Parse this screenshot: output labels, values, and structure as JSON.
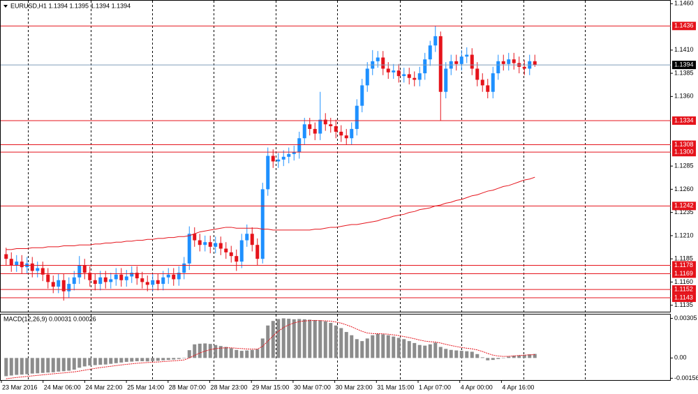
{
  "chart_data": [
    {
      "type": "candlestick",
      "title": "EURUSD,H1  1.1394 1.1395 1.1394 1.1394",
      "up_color": "#1e90ff",
      "down_color": "#e5131b",
      "grid": true,
      "ylim": [
        1.1128,
        1.1464
      ],
      "yticks": [
        {
          "value": 1.146,
          "label": "1.1460"
        },
        {
          "value": 1.141,
          "label": "1.1410"
        },
        {
          "value": 1.1385,
          "label": "1.1385"
        },
        {
          "value": 1.136,
          "label": "1.1360"
        },
        {
          "value": 1.1285,
          "label": "1.1285"
        },
        {
          "value": 1.126,
          "label": "1.1260"
        },
        {
          "value": 1.1235,
          "label": "1.1235"
        },
        {
          "value": 1.121,
          "label": "1.1210"
        },
        {
          "value": 1.1185,
          "label": "1.1185"
        },
        {
          "value": 1.116,
          "label": "1.1160"
        },
        {
          "value": 1.1135,
          "label": "1.1135"
        }
      ],
      "level_color": "#e5131b",
      "levels": [
        {
          "value": 1.1436,
          "label": "1.1436"
        },
        {
          "value": 1.1334,
          "label": "1.1334"
        },
        {
          "value": 1.1308,
          "label": "1.1308"
        },
        {
          "value": 1.13,
          "label": "1.1300"
        },
        {
          "value": 1.1242,
          "label": "1.1242"
        },
        {
          "value": 1.1178,
          "label": "1.1178"
        },
        {
          "value": 1.1169,
          "label": "1.1169"
        },
        {
          "value": 1.1152,
          "label": "1.1152"
        },
        {
          "value": 1.1143,
          "label": "1.1143"
        }
      ],
      "last_color": "#7f9db9",
      "last": {
        "value": 1.1394,
        "label": "1.1394"
      },
      "open": [
        1.119,
        1.1185,
        1.1178,
        1.1182,
        1.1176,
        1.118,
        1.1172,
        1.1175,
        1.1168,
        1.116,
        1.1155,
        1.1162,
        1.115,
        1.1158,
        1.1165,
        1.1178,
        1.117,
        1.1162,
        1.1158,
        1.1165,
        1.116,
        1.1163,
        1.1168,
        1.1162,
        1.1166,
        1.117,
        1.1164,
        1.116,
        1.1157,
        1.1162,
        1.1158,
        1.1165,
        1.1168,
        1.1163,
        1.117,
        1.118,
        1.1212,
        1.1205,
        1.12,
        1.1203,
        1.1198,
        1.1202,
        1.1196,
        1.1192,
        1.1188,
        1.1182,
        1.1205,
        1.1212,
        1.12,
        1.1185,
        1.126,
        1.1296,
        1.129,
        1.1292,
        1.1295,
        1.1298,
        1.13,
        1.1315,
        1.133,
        1.1325,
        1.132,
        1.1335,
        1.133,
        1.1328,
        1.1322,
        1.1318,
        1.1315,
        1.1325,
        1.135,
        1.1372,
        1.139,
        1.1398,
        1.1402,
        1.139,
        1.1386,
        1.1388,
        1.1382,
        1.1384,
        1.138,
        1.1378,
        1.1385,
        1.14,
        1.1415,
        1.1425,
        1.1365,
        1.139,
        1.1398,
        1.1395,
        1.1403,
        1.1405,
        1.139,
        1.1378,
        1.1372,
        1.1365,
        1.1385,
        1.1398,
        1.1395,
        1.14,
        1.1396,
        1.1392,
        1.139,
        1.1398
      ],
      "high": [
        1.1197,
        1.1192,
        1.1189,
        1.1189,
        1.1187,
        1.1187,
        1.1182,
        1.1182,
        1.1175,
        1.1167,
        1.1169,
        1.1169,
        1.1165,
        1.1172,
        1.1188,
        1.1185,
        1.1177,
        1.1169,
        1.1172,
        1.1172,
        1.117,
        1.1175,
        1.1175,
        1.1173,
        1.1177,
        1.1177,
        1.1171,
        1.1167,
        1.1169,
        1.1169,
        1.1172,
        1.1175,
        1.1175,
        1.1177,
        1.1187,
        1.122,
        1.1219,
        1.1212,
        1.121,
        1.121,
        1.1209,
        1.1209,
        1.1203,
        1.1199,
        1.1195,
        1.1212,
        1.1222,
        1.1219,
        1.1207,
        1.1267,
        1.1305,
        1.1303,
        1.1299,
        1.1302,
        1.1305,
        1.1307,
        1.1322,
        1.1337,
        1.1337,
        1.1332,
        1.1365,
        1.1342,
        1.1337,
        1.1335,
        1.1329,
        1.1325,
        1.1332,
        1.1357,
        1.1379,
        1.1397,
        1.141,
        1.1409,
        1.1409,
        1.1397,
        1.1395,
        1.1395,
        1.1391,
        1.1391,
        1.1387,
        1.1392,
        1.1407,
        1.142,
        1.1436,
        1.143,
        1.1397,
        1.1405,
        1.1405,
        1.141,
        1.1413,
        1.1412,
        1.1397,
        1.1385,
        1.1379,
        1.1392,
        1.1405,
        1.1405,
        1.1407,
        1.1407,
        1.1403,
        1.1399,
        1.1405,
        1.1405
      ],
      "low": [
        1.1178,
        1.1171,
        1.1171,
        1.1169,
        1.1169,
        1.1165,
        1.1165,
        1.1161,
        1.1153,
        1.1148,
        1.1148,
        1.114,
        1.1143,
        1.1151,
        1.1158,
        1.1163,
        1.1155,
        1.1151,
        1.1151,
        1.1153,
        1.1153,
        1.1156,
        1.1155,
        1.1155,
        1.1159,
        1.1157,
        1.1153,
        1.115,
        1.115,
        1.1151,
        1.1151,
        1.1158,
        1.1156,
        1.1156,
        1.1163,
        1.1173,
        1.1198,
        1.1193,
        1.1193,
        1.1191,
        1.1191,
        1.1189,
        1.1185,
        1.1181,
        1.1172,
        1.1175,
        1.1198,
        1.1193,
        1.1178,
        1.118,
        1.1253,
        1.1283,
        1.1283,
        1.1285,
        1.1288,
        1.1291,
        1.1293,
        1.1308,
        1.1318,
        1.1313,
        1.1313,
        1.1323,
        1.1321,
        1.1315,
        1.1311,
        1.1308,
        1.1308,
        1.1318,
        1.1343,
        1.1365,
        1.1383,
        1.1391,
        1.1383,
        1.1379,
        1.1379,
        1.1375,
        1.1375,
        1.1373,
        1.1371,
        1.1371,
        1.1378,
        1.1393,
        1.1408,
        1.1334,
        1.1358,
        1.1383,
        1.1388,
        1.1388,
        1.1396,
        1.1383,
        1.1371,
        1.1365,
        1.1358,
        1.1358,
        1.1378,
        1.1388,
        1.1388,
        1.1389,
        1.1385,
        1.1383,
        1.1383,
        1.1392
      ],
      "close": [
        1.1185,
        1.1178,
        1.1182,
        1.1176,
        1.118,
        1.1172,
        1.1175,
        1.1168,
        1.116,
        1.1155,
        1.1162,
        1.115,
        1.1158,
        1.1165,
        1.1178,
        1.117,
        1.1162,
        1.1158,
        1.1165,
        1.116,
        1.1163,
        1.1168,
        1.1162,
        1.1166,
        1.117,
        1.1164,
        1.116,
        1.1157,
        1.1162,
        1.1158,
        1.1165,
        1.1168,
        1.1163,
        1.117,
        1.118,
        1.1212,
        1.1205,
        1.12,
        1.1203,
        1.1198,
        1.1202,
        1.1196,
        1.1192,
        1.1188,
        1.1182,
        1.1205,
        1.1212,
        1.12,
        1.1185,
        1.126,
        1.1296,
        1.129,
        1.1292,
        1.1295,
        1.1298,
        1.13,
        1.1315,
        1.133,
        1.1325,
        1.132,
        1.1335,
        1.133,
        1.1328,
        1.1322,
        1.1318,
        1.1315,
        1.1325,
        1.135,
        1.1372,
        1.139,
        1.1398,
        1.1402,
        1.139,
        1.1386,
        1.1388,
        1.1382,
        1.1384,
        1.138,
        1.1378,
        1.1385,
        1.14,
        1.1415,
        1.1425,
        1.1365,
        1.139,
        1.1398,
        1.1395,
        1.1403,
        1.1405,
        1.139,
        1.1378,
        1.1372,
        1.1365,
        1.1385,
        1.1398,
        1.1395,
        1.14,
        1.1396,
        1.1392,
        1.139,
        1.1398,
        1.1394
      ],
      "ma": {
        "color": "#e5131b",
        "values": [
          1.1195,
          1.1195,
          1.1196,
          1.1196,
          1.1196,
          1.1197,
          1.1197,
          1.1197,
          1.1198,
          1.1198,
          1.1198,
          1.1199,
          1.1199,
          1.1199,
          1.12,
          1.12,
          1.12,
          1.1201,
          1.1201,
          1.1202,
          1.1202,
          1.1203,
          1.1203,
          1.1204,
          1.1204,
          1.1205,
          1.1205,
          1.1206,
          1.1206,
          1.1207,
          1.1207,
          1.1208,
          1.1208,
          1.1209,
          1.1209,
          1.121,
          1.1212,
          1.1214,
          1.1215,
          1.1216,
          1.1217,
          1.1218,
          1.1219,
          1.1219,
          1.1218,
          1.1218,
          1.1218,
          1.1218,
          1.1218,
          1.1217,
          1.1217,
          1.1216,
          1.1216,
          1.1216,
          1.1216,
          1.1216,
          1.1216,
          1.1216,
          1.1216,
          1.1217,
          1.1217,
          1.1218,
          1.1219,
          1.1219,
          1.122,
          1.1221,
          1.1222,
          1.1222,
          1.1223,
          1.1224,
          1.1225,
          1.1226,
          1.1228,
          1.1229,
          1.1231,
          1.1232,
          1.1233,
          1.1235,
          1.1236,
          1.1238,
          1.1239,
          1.124,
          1.1242,
          1.1243,
          1.1245,
          1.1246,
          1.1248,
          1.1249,
          1.1251,
          1.1253,
          1.1254,
          1.1256,
          1.1258,
          1.1259,
          1.1261,
          1.1263,
          1.1264,
          1.1266,
          1.1268,
          1.127,
          1.1271,
          1.1273
        ]
      }
    },
    {
      "type": "macd",
      "label": "MACD(12,26,9) 0.00031 0.00026",
      "grid": true,
      "ylim": [
        -0.0017,
        0.0034
      ],
      "yticks": [
        {
          "value": 0.00305,
          "label": "0.00305"
        },
        {
          "value": 0,
          "label": "0.00"
        },
        {
          "value": -0.00156,
          "label": "-0.00156"
        }
      ],
      "x_labels": [
        "23 Mar 2016",
        "24 Mar 06:00",
        "24 Mar 22:00",
        "25 Mar 14:00",
        "28 Mar 07:00",
        "28 Mar 23:00",
        "29 Mar 15:00",
        "30 Mar 07:00",
        "30 Mar 23:00",
        "31 Mar 15:00",
        "1 Apr 07:00",
        "4 Apr 00:00",
        "4 Apr 16:00"
      ],
      "histogram_color": "#8c8c8c",
      "signal_color": "#e5131b",
      "histogram": [
        -0.0014,
        -0.00135,
        -0.0013,
        -0.00128,
        -0.00125,
        -0.0012,
        -0.00118,
        -0.00115,
        -0.00112,
        -0.0011,
        -0.00105,
        -0.00102,
        -0.00098,
        -0.0009,
        -0.00075,
        -0.00065,
        -0.00058,
        -0.00055,
        -0.00052,
        -0.0005,
        -0.00045,
        -0.0004,
        -0.00035,
        -0.0003,
        -0.00028,
        -0.00025,
        -0.00025,
        -0.00026,
        -0.00024,
        -0.00022,
        -0.00018,
        -0.00015,
        -0.00012,
        -8e-05,
        -3e-05,
        0.0006,
        0.00105,
        0.0011,
        0.00112,
        0.00108,
        0.001,
        0.00092,
        0.00085,
        0.00075,
        0.00062,
        0.00055,
        0.00058,
        0.00062,
        0.00068,
        0.0015,
        0.0025,
        0.00285,
        0.003,
        0.00305,
        0.00302,
        0.00298,
        0.003,
        0.00298,
        0.00295,
        0.00292,
        0.0029,
        0.00282,
        0.0027,
        0.0025,
        0.0023,
        0.002,
        0.00175,
        0.00145,
        0.0013,
        0.0015,
        0.00175,
        0.00185,
        0.00182,
        0.00175,
        0.00165,
        0.00155,
        0.00145,
        0.0013,
        0.00115,
        0.001,
        0.00095,
        0.00105,
        0.00118,
        0.00085,
        0.0007,
        0.00062,
        0.00058,
        0.00055,
        0.00052,
        0.00048,
        0.0003,
        5e-05,
        -0.00018,
        -0.00015,
        -8e-05,
        0.0,
        0.0001,
        0.00018,
        0.0002,
        0.00022,
        0.00028,
        0.00031
      ],
      "signal": [
        -0.0016,
        -0.00155,
        -0.0015,
        -0.00146,
        -0.00142,
        -0.00138,
        -0.00134,
        -0.0013,
        -0.00126,
        -0.00122,
        -0.00118,
        -0.00115,
        -0.00111,
        -0.00107,
        -0.00101,
        -0.00094,
        -0.00087,
        -0.0008,
        -0.00074,
        -0.00069,
        -0.00064,
        -0.00059,
        -0.00054,
        -0.00049,
        -0.00045,
        -0.00041,
        -0.00038,
        -0.00035,
        -0.00033,
        -0.00031,
        -0.00028,
        -0.00025,
        -0.00022,
        -0.00019,
        -0.00015,
        0.0,
        0.0002,
        0.00038,
        0.00053,
        0.00064,
        0.00072,
        0.00076,
        0.00078,
        0.00078,
        0.00075,
        0.00072,
        0.00069,
        0.00068,
        0.00068,
        0.0009,
        0.0013,
        0.0017,
        0.00205,
        0.00235,
        0.00255,
        0.0027,
        0.0028,
        0.00285,
        0.00288,
        0.00288,
        0.00288,
        0.00286,
        0.00283,
        0.00277,
        0.00268,
        0.00255,
        0.0024,
        0.00222,
        0.00205,
        0.00192,
        0.00188,
        0.00187,
        0.00186,
        0.00183,
        0.00178,
        0.00172,
        0.00165,
        0.00157,
        0.00148,
        0.00138,
        0.0013,
        0.00125,
        0.00123,
        0.00115,
        0.00105,
        0.00096,
        0.00088,
        0.00081,
        0.00075,
        0.0007,
        0.00062,
        0.0005,
        0.00035,
        0.00022,
        0.00015,
        0.00012,
        0.00013,
        0.00016,
        0.00019,
        0.00022,
        0.00024,
        0.00026
      ]
    }
  ]
}
